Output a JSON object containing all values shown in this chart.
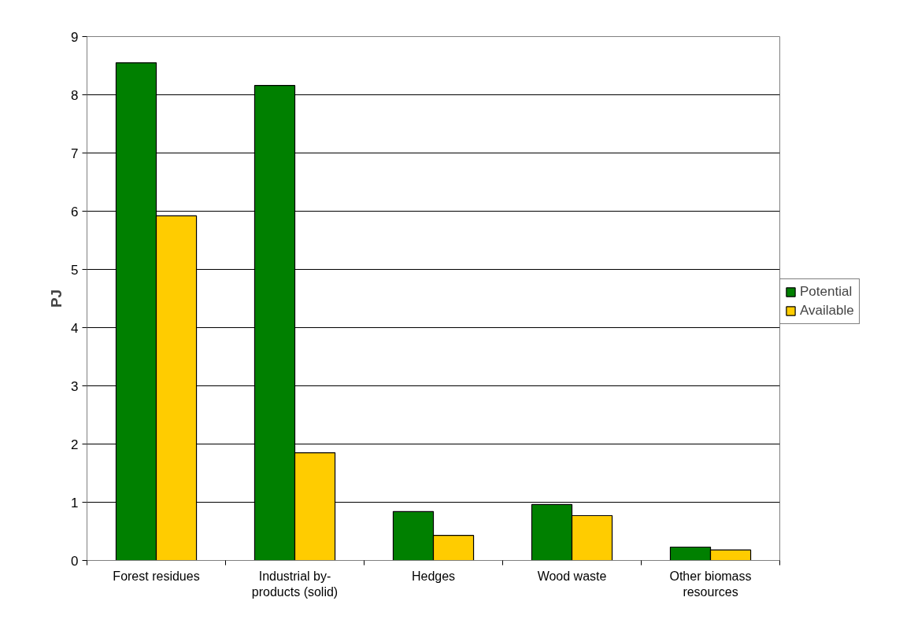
{
  "chart_data": {
    "type": "bar",
    "ylabel": "PJ",
    "categories": [
      "Forest residues",
      "Industrial by-products (solid)",
      "Hedges",
      "Wood waste",
      "Other biomass resources"
    ],
    "series": [
      {
        "name": "Potential",
        "color": "#008000",
        "values": [
          8.55,
          8.16,
          0.84,
          0.96,
          0.23
        ]
      },
      {
        "name": "Available",
        "color": "#ffcc00",
        "values": [
          5.92,
          1.85,
          0.43,
          0.77,
          0.18
        ]
      }
    ],
    "ylim": [
      0,
      9
    ],
    "yticks": [
      0,
      1,
      2,
      3,
      4,
      5,
      6,
      7,
      8,
      9
    ],
    "grid": "y",
    "legend": "right"
  }
}
